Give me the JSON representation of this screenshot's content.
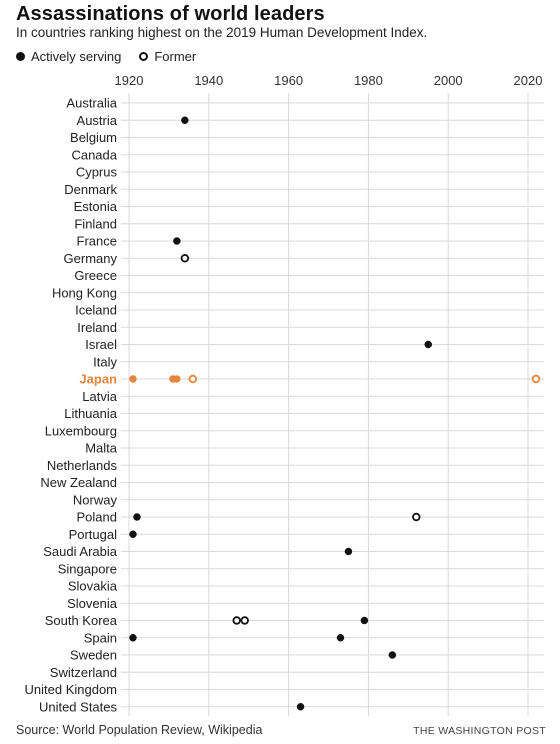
{
  "header": {
    "title": "Assassinations of world leaders",
    "subtitle": "In countries ranking highest on the 2019 Human Development Index."
  },
  "legend": {
    "active_label": "Actively serving",
    "former_label": "Former"
  },
  "footer": {
    "source": "Source: World Population Review, Wikipedia",
    "credit": "THE WASHINGTON POST"
  },
  "colors": {
    "dot": "#111111",
    "highlight": "#e8853d",
    "grid": "#d9d9d9"
  },
  "chart_data": {
    "type": "scatter",
    "title": "Assassinations of world leaders",
    "subtitle": "In countries ranking highest on the 2019 Human Development Index.",
    "x_ticks": [
      1920,
      1940,
      1960,
      1980,
      2000,
      2020
    ],
    "xlim": [
      1920,
      2022
    ],
    "grid": true,
    "legend_position": "top-left",
    "highlight_category": "Japan",
    "categories": [
      "Australia",
      "Austria",
      "Belgium",
      "Canada",
      "Cyprus",
      "Denmark",
      "Estonia",
      "Finland",
      "France",
      "Germany",
      "Greece",
      "Hong Kong",
      "Iceland",
      "Ireland",
      "Israel",
      "Italy",
      "Japan",
      "Latvia",
      "Lithuania",
      "Luxembourg",
      "Malta",
      "Netherlands",
      "New Zealand",
      "Norway",
      "Poland",
      "Portugal",
      "Saudi Arabia",
      "Singapore",
      "Slovakia",
      "Slovenia",
      "South Korea",
      "Spain",
      "Sweden",
      "Switzerland",
      "United Kingdom",
      "United States"
    ],
    "series": [
      {
        "name": "Actively serving",
        "marker": "filled",
        "points": [
          {
            "country": "Austria",
            "year": 1934
          },
          {
            "country": "France",
            "year": 1932
          },
          {
            "country": "Israel",
            "year": 1995
          },
          {
            "country": "Japan",
            "year": 1921
          },
          {
            "country": "Japan",
            "year": 1931
          },
          {
            "country": "Japan",
            "year": 1932
          },
          {
            "country": "Poland",
            "year": 1922
          },
          {
            "country": "Portugal",
            "year": 1921
          },
          {
            "country": "Saudi Arabia",
            "year": 1975
          },
          {
            "country": "South Korea",
            "year": 1979
          },
          {
            "country": "Spain",
            "year": 1921
          },
          {
            "country": "Spain",
            "year": 1973
          },
          {
            "country": "Sweden",
            "year": 1986
          },
          {
            "country": "United States",
            "year": 1963
          }
        ]
      },
      {
        "name": "Former",
        "marker": "hollow",
        "points": [
          {
            "country": "Germany",
            "year": 1934
          },
          {
            "country": "Japan",
            "year": 1936
          },
          {
            "country": "Japan",
            "year": 2022
          },
          {
            "country": "Poland",
            "year": 1992
          },
          {
            "country": "South Korea",
            "year": 1947
          },
          {
            "country": "South Korea",
            "year": 1949
          }
        ]
      }
    ]
  }
}
